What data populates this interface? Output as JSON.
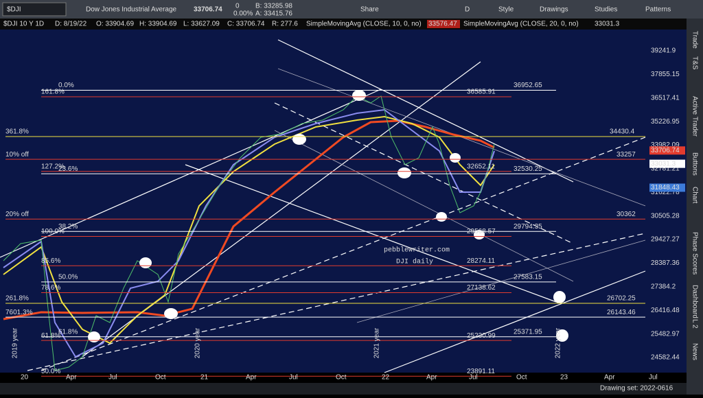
{
  "toolbar": {
    "symbol": "$DJI",
    "name": "Dow Jones Industrial Average",
    "price": "33706.74",
    "change": "0",
    "change_pct": "0.00%",
    "bid": "B: 33285.98",
    "ask": "A: 33415.76",
    "buttons": [
      "Share",
      "D",
      "Style",
      "Drawings",
      "Studies",
      "Patterns"
    ]
  },
  "info_bar": {
    "items": [
      "$DJI 10 Y 1D",
      "D: 8/19/22",
      "O: 33904.69",
      "H: 33904.69",
      "L: 33627.09",
      "C: 33706.74",
      "R: 277.6"
    ],
    "sma10": "SimpleMovingAvg (CLOSE, 10, 0, no)",
    "sma10_value": "33576.47",
    "sma20": "SimpleMovingAvg (CLOSE, 20, 0, no)",
    "sma20_value": "33031.3"
  },
  "price_axis": {
    "ticks": [
      39241.9,
      37855.15,
      36517.41,
      35226.95,
      33982.09,
      32781.21,
      31622.78,
      30505.28,
      29427.27,
      28387.36,
      27384.2,
      26416.48,
      25482.97,
      24582.44
    ],
    "markers": [
      {
        "label": "33706.74",
        "color": "#e23b2e"
      },
      {
        "label": "33031.3",
        "color": "#ffffff"
      },
      {
        "label": "31848.43",
        "color": "#3d7bd9"
      }
    ]
  },
  "time_axis": [
    "20",
    "Apr",
    "Jul",
    "Oct",
    "21",
    "Apr",
    "Jul",
    "Oct",
    "22",
    "Apr",
    "Jul",
    "Oct",
    "23",
    "Apr",
    "Jul"
  ],
  "year_labels": [
    "2019 year",
    "2020 year",
    "2021 year",
    "2022 year"
  ],
  "levels": [
    {
      "label": "0.0%",
      "value": 36952.65,
      "color": "#ffffff"
    },
    {
      "label": "161.8%",
      "value": 36585.91,
      "color": "#e23b2e"
    },
    {
      "label": "361.8%",
      "value": 34430.4,
      "color": "#f0e040"
    },
    {
      "label": "10% off",
      "value": 33257,
      "color": "#e23b2e"
    },
    {
      "label": "127.2%",
      "value": 32652.11,
      "color": "#e23b2e"
    },
    {
      "label": "23.6%",
      "value": 32530.25,
      "color": "#ffffff"
    },
    {
      "label": "20% off",
      "value": 30362,
      "color": "#e23b2e"
    },
    {
      "label": "38.2%",
      "value": 29794.35,
      "color": "#ffffff"
    },
    {
      "label": "100.0%",
      "value": 29568.57,
      "color": "#e23b2e"
    },
    {
      "label": "85.6%",
      "value": 28274.11,
      "color": "#e23b2e"
    },
    {
      "label": "50.0%",
      "value": 27583.15,
      "color": "#ffffff"
    },
    {
      "label": "78.6%",
      "value": 27138.62,
      "color": "#e23b2e"
    },
    {
      "label": "261.8%",
      "value": 26702.25,
      "color": "#f0e040"
    },
    {
      "label": "7601.3%",
      "value": 26143.46,
      "color": "#ffffff"
    },
    {
      "label": "61.8%",
      "value": 25371.95,
      "color": "#ffffff"
    },
    {
      "label": "61.8%",
      "value": 25230.99,
      "color": "#e23b2e"
    },
    {
      "label": "50.0%",
      "value": 23891.11,
      "color": "#e23b2e"
    }
  ],
  "watermark": [
    "pebblewriter.com",
    "DJI daily"
  ],
  "side_tabs": [
    "Trade",
    "T&S",
    "Active Trader",
    "Buttons",
    "Chart",
    "Phase Scores",
    "Dashboard",
    "L 2",
    "News"
  ],
  "status": "Drawing set: 2022-0616"
}
